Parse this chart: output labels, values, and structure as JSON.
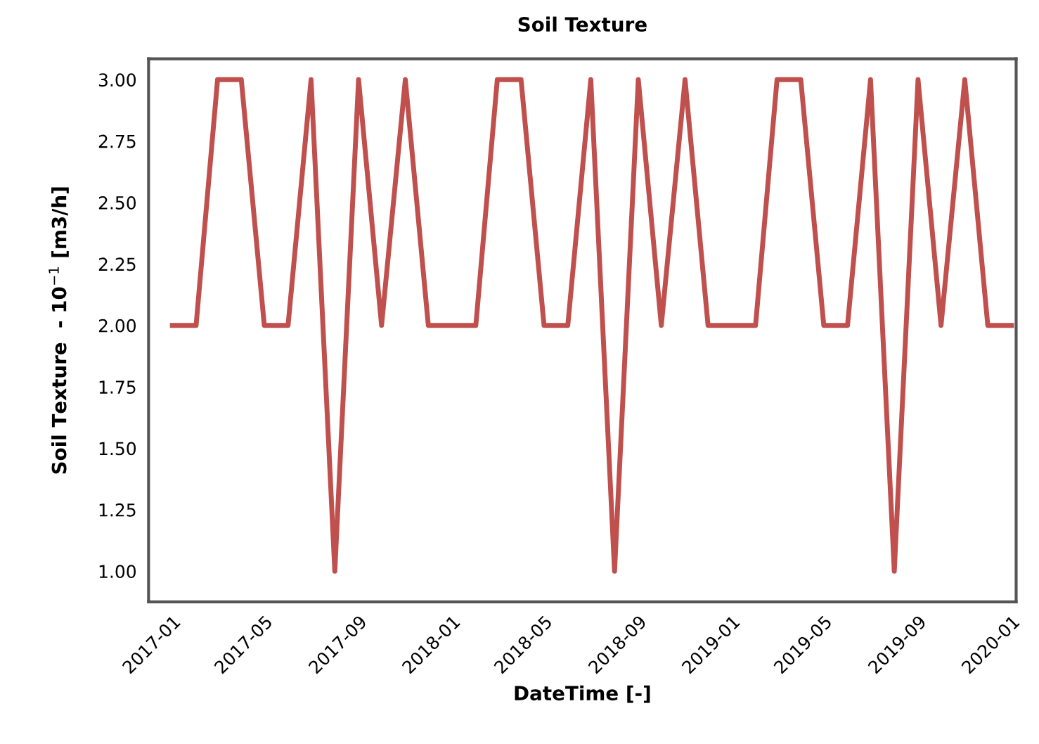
{
  "chart_data": {
    "type": "line",
    "title": "Soil Texture",
    "xlabel": "DateTime [-]",
    "ylabel": "Soil Texture  - 10$^{−1}$ [m3/h]",
    "x": [
      "2017-01",
      "2017-02",
      "2017-03",
      "2017-04",
      "2017-05",
      "2017-06",
      "2017-07",
      "2017-08",
      "2017-09",
      "2017-10",
      "2017-11",
      "2017-12",
      "2018-01",
      "2018-02",
      "2018-03",
      "2018-04",
      "2018-05",
      "2018-06",
      "2018-07",
      "2018-08",
      "2018-09",
      "2018-10",
      "2018-11",
      "2018-12",
      "2019-01",
      "2019-02",
      "2019-03",
      "2019-04",
      "2019-05",
      "2019-06",
      "2019-07",
      "2019-08",
      "2019-09",
      "2019-10",
      "2019-11",
      "2019-12",
      "2020-01"
    ],
    "series": [
      {
        "color": "#c0504d",
        "values": [
          2,
          2,
          3,
          3,
          2,
          2,
          3,
          1,
          3,
          2,
          3,
          2,
          2,
          2,
          3,
          3,
          2,
          2,
          3,
          1,
          3,
          2,
          3,
          2,
          2,
          2,
          3,
          3,
          2,
          2,
          3,
          1,
          3,
          2,
          3,
          2,
          2
        ]
      }
    ],
    "xlim": [
      "2016-12-01",
      "2020-01-07"
    ],
    "xticks": [
      {
        "value": "2017-01",
        "label": "2017-01"
      },
      {
        "value": "2017-05",
        "label": "2017-05"
      },
      {
        "value": "2017-09",
        "label": "2017-09"
      },
      {
        "value": "2018-01",
        "label": "2018-01"
      },
      {
        "value": "2018-05",
        "label": "2018-05"
      },
      {
        "value": "2018-09",
        "label": "2018-09"
      },
      {
        "value": "2019-01",
        "label": "2019-01"
      },
      {
        "value": "2019-05",
        "label": "2019-05"
      },
      {
        "value": "2019-09",
        "label": "2019-09"
      },
      {
        "value": "2020-01",
        "label": "2020-01"
      }
    ],
    "ylim": [
      0.875,
      3.085
    ],
    "yticks": [
      {
        "value": 1,
        "label": "1.00"
      },
      {
        "value": 1.25,
        "label": "1.25"
      },
      {
        "value": 1.5,
        "label": "1.50"
      },
      {
        "value": 1.75,
        "label": "1.75"
      },
      {
        "value": 2,
        "label": "2.00"
      },
      {
        "value": 2.25,
        "label": "2.25"
      },
      {
        "value": 2.5,
        "label": "2.50"
      },
      {
        "value": 2.75,
        "label": "2.75"
      },
      {
        "value": 3,
        "label": "3.00"
      }
    ],
    "grid": false,
    "marker": "none",
    "line_style": "solid"
  }
}
